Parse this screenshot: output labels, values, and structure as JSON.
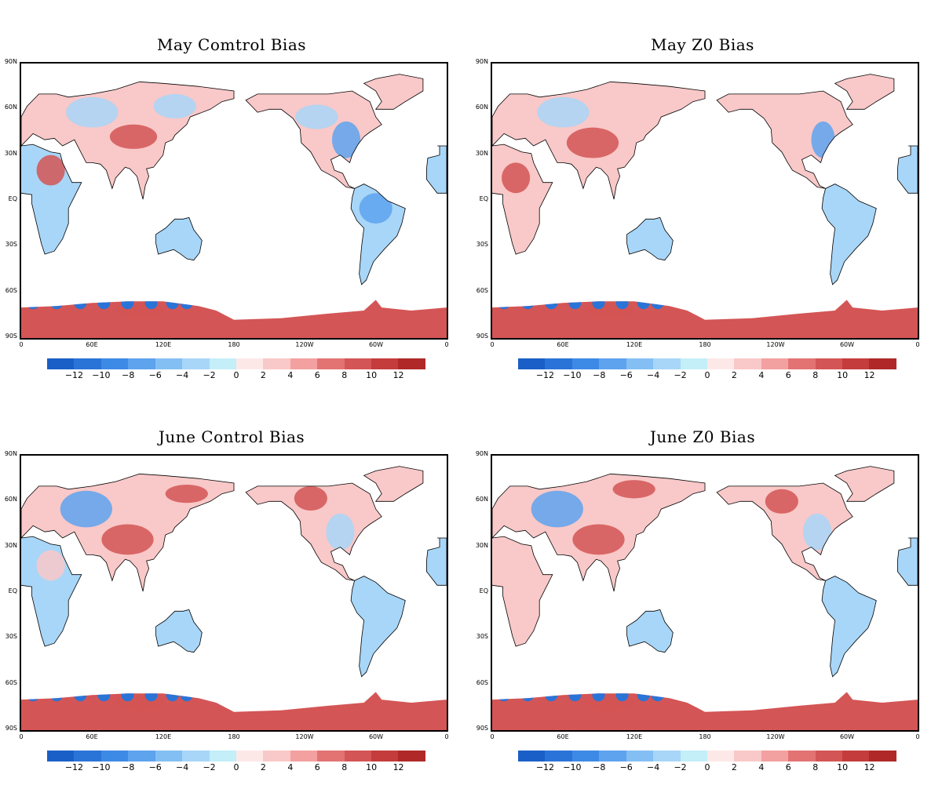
{
  "panels": [
    {
      "title": "May Comtrol Bias"
    },
    {
      "title": "May Z0 Bias"
    },
    {
      "title": "June Control Bias"
    },
    {
      "title": "June Z0 Bias"
    }
  ],
  "lat_labels": [
    "90N",
    "60N",
    "30N",
    "EQ",
    "30S",
    "60S",
    "90S"
  ],
  "lon_labels": [
    "0",
    "60E",
    "120E",
    "180",
    "120W",
    "60W",
    "0"
  ],
  "colorbar": {
    "labels": [
      "−12",
      "−10",
      "−8",
      "−6",
      "−4",
      "−2",
      "0",
      "2",
      "4",
      "6",
      "8",
      "10",
      "12"
    ],
    "colors": [
      "#1a5fc8",
      "#2a74d8",
      "#3d8ae6",
      "#5ea3ee",
      "#84bff4",
      "#a8d6f8",
      "#c4eef8",
      "#fde8e8",
      "#f9c8c8",
      "#f3a0a0",
      "#e37373",
      "#d45555",
      "#c43c3c",
      "#b02828"
    ]
  },
  "map_colors": {
    "ocean": "#ffffff",
    "cool": "#a8d6f8",
    "cool_strong": "#5ea3ee",
    "warm": "#f9c8c8",
    "warm_strong": "#d45555",
    "coast": "#000000"
  }
}
